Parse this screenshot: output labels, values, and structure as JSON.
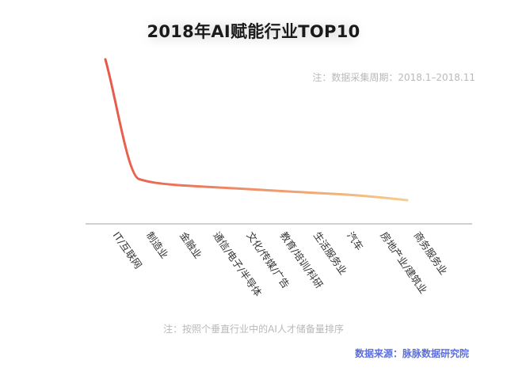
{
  "chart_data": {
    "type": "line",
    "title": "2018年AI赋能行业TOP10",
    "subtitle": "注：数据采集周期：2018.1–2018.11",
    "xlabel": "",
    "ylabel": "",
    "categories": [
      "IT/互联网",
      "制造业",
      "金融业",
      "通信/电子/半导体",
      "文化/传媒/广告",
      "教育/培训/科研",
      "生活服务业",
      "汽车",
      "房地产业/建筑业",
      "商务服务业"
    ],
    "values": [
      100,
      15,
      11,
      9.5,
      8.2,
      6.8,
      5.5,
      4.2,
      2.4,
      0
    ],
    "ylim": [
      0,
      100
    ],
    "grid": false,
    "legend": "none",
    "line_color_start": "#e8584a",
    "line_color_end": "#f4cf8c",
    "axis_color": "#b5b5b5"
  },
  "notes": {
    "period": "注：数据采集周期：2018.1–2018.11",
    "basis": "注：按照个垂直行业中的AI人才储备量排序"
  },
  "source": "数据来源：脉脉数据研究院"
}
